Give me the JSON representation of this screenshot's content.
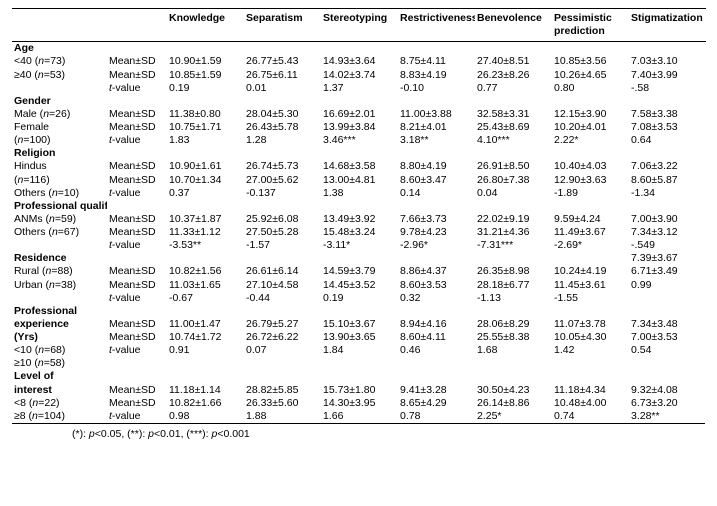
{
  "columns": [
    "Knowledge",
    "Separatism",
    "Stereotyping",
    "Restrictiveness",
    "Benevolence",
    "Pessimistic prediction",
    "Stigmatization"
  ],
  "statLabels": {
    "mean": "Mean±SD",
    "t": "t-value"
  },
  "sections": [
    {
      "title": "Age",
      "rows": [
        {
          "label": "<40 (n=73)",
          "stat": "mean",
          "vals": [
            "10.90±1.59",
            "26.77±5.43",
            "14.93±3.64",
            "8.75±4.11",
            "27.40±8.51",
            "10.85±3.56",
            "7.03±3.10"
          ]
        },
        {
          "label": "≥40 (n=53)",
          "stat": "mean",
          "vals": [
            "10.85±1.59",
            "26.75±6.11",
            "14.02±3.74",
            "8.83±4.19",
            "26.23±8.26",
            "10.26±4.65",
            "7.40±3.99"
          ]
        },
        {
          "label": "",
          "stat": "t",
          "vals": [
            "0.19",
            "0.01",
            "1.37",
            "-0.10",
            "0.77",
            "0.80",
            "-.58"
          ]
        }
      ]
    },
    {
      "title": "Gender",
      "rows": [
        {
          "label": "Male (n=26)",
          "stat": "mean",
          "vals": [
            "11.38±0.80",
            "28.04±5.30",
            "16.69±2.01",
            "11.00±3.88",
            "32.58±3.31",
            "12.15±3.90",
            "7.58±3.38"
          ]
        },
        {
          "label": "Female",
          "stat": "mean",
          "vals": [
            "10.75±1.71",
            "26.43±5.78",
            "13.99±3.84",
            "8.21±4.01",
            "25.43±8.69",
            "10.20±4.01",
            "7.08±3.53"
          ]
        },
        {
          "label": "(n=100)",
          "stat": "t",
          "vals": [
            "1.83",
            "1.28",
            "3.46***",
            "3.18**",
            "4.10***",
            "2.22*",
            "0.64"
          ]
        }
      ]
    },
    {
      "title": "Religion",
      "rows": [
        {
          "label": "Hindus",
          "stat": "mean",
          "vals": [
            "10.90±1.61",
            "26.74±5.73",
            "14.68±3.58",
            "8.80±4.19",
            "26.91±8.50",
            "10.40±4.03",
            "7.06±3.22"
          ]
        },
        {
          "label": "(n=116)",
          "stat": "mean",
          "vals": [
            "10.70±1.34",
            "27.00±5.62",
            "13.00±4.81",
            "8.60±3.47",
            "26.80±7.38",
            "12.90±3.63",
            "8.60±5.87"
          ]
        },
        {
          "label": "Others (n=10)",
          "stat": "t",
          "vals": [
            "0.37",
            "-0.137",
            "1.38",
            "0.14",
            "0.04",
            "-1.89",
            "-1.34"
          ]
        }
      ]
    },
    {
      "title": "Professional qualification",
      "rows": [
        {
          "label": "ANMs (n=59)",
          "stat": "mean",
          "vals": [
            "10.37±1.87",
            "25.92±6.08",
            "13.49±3.92",
            "7.66±3.73",
            "22.02±9.19",
            "9.59±4.24",
            "7.00±3.90"
          ]
        },
        {
          "label": "Others (n=67)",
          "stat": "mean",
          "vals": [
            "11.33±1.12",
            "27.50±5.28",
            "15.48±3.24",
            "9.78±4.23",
            "31.21±4.36",
            "11.49±3.67",
            "7.34±3.12"
          ]
        },
        {
          "label": "",
          "stat": "t",
          "vals": [
            "-3.53**",
            "-1.57",
            "-3.11*",
            "-2.96*",
            "-7.31***",
            "-2.69*",
            "-.549"
          ]
        }
      ]
    },
    {
      "title": "Residence",
      "extraFirst": "7.39±3.67",
      "rows": [
        {
          "label": "Rural (n=88)",
          "stat": "mean",
          "vals": [
            "10.82±1.56",
            "26.61±6.14",
            "14.59±3.79",
            "8.86±4.37",
            "26.35±8.98",
            "10.24±4.19",
            "6.71±3.49"
          ]
        },
        {
          "label": "Urban (n=38)",
          "stat": "mean",
          "vals": [
            "11.03±1.65",
            "27.10±4.58",
            "14.45±3.52",
            "8.60±3.53",
            "28.18±6.77",
            "11.45±3.61",
            "0.99"
          ]
        },
        {
          "label": "",
          "stat": "t",
          "vals": [
            "-0.67",
            "-0.44",
            "0.19",
            "0.32",
            "-1.13",
            "-1.55",
            ""
          ]
        }
      ]
    },
    {
      "title": "Professional experience (Yrs)",
      "titleLines": [
        "Professional",
        "experience",
        "(Yrs)"
      ],
      "rows": [
        {
          "label": "",
          "stat": "mean",
          "vals": [
            "11.00±1.47",
            "26.79±5.27",
            "15.10±3.67",
            "8.94±4.16",
            "28.06±8.29",
            "11.07±3.78",
            "7.34±3.48"
          ]
        },
        {
          "label": "",
          "stat": "mean",
          "vals": [
            "10.74±1.72",
            "26.72±6.22",
            "13.90±3.65",
            "8.60±4.11",
            "25.55±8.38",
            "10.05±4.30",
            "7.00±3.53"
          ]
        },
        {
          "label": "<10 (n=68)",
          "stat": "t",
          "vals": [
            "0.91",
            "0.07",
            "1.84",
            "0.46",
            "1.68",
            "1.42",
            "0.54"
          ]
        }
      ],
      "trailing": "≥10 (n=58)"
    },
    {
      "title": "Level of interest",
      "titleLines": [
        "Level of",
        "interest"
      ],
      "rows": [
        {
          "label": "",
          "stat": "mean",
          "vals": [
            "11.18±1.14",
            "28.82±5.85",
            "15.73±1.80",
            "9.41±3.28",
            "30.50±4.23",
            "11.18±4.34",
            "9.32±4.08"
          ]
        },
        {
          "label": "<8 (n=22)",
          "stat": "mean",
          "vals": [
            "10.82±1.66",
            "26.33±5.60",
            "14.30±3.95",
            "8.65±4.29",
            "26.14±8.86",
            "10.48±4.00",
            "6.73±3.20"
          ]
        },
        {
          "label": "≥8 (n=104)",
          "stat": "t",
          "vals": [
            "0.98",
            "1.88",
            "1.66",
            "0.78",
            "2.25*",
            "0.74",
            "3.28**"
          ]
        }
      ]
    }
  ],
  "footnote": "(*): p<0.05, (**): p<0.01, (***): p<0.001"
}
